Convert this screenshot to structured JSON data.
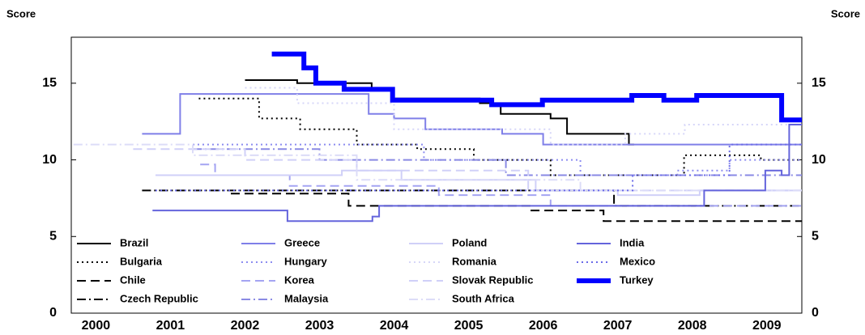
{
  "chart_data": {
    "type": "line",
    "y_label": "Score",
    "y2_label": "Score",
    "xlim": [
      2000.17,
      2009.97
    ],
    "xticks": [
      2000,
      2001,
      2002,
      2003,
      2004,
      2005,
      2006,
      2007,
      2008,
      2009
    ],
    "ylim": [
      0,
      18
    ],
    "yticks": [
      0,
      5,
      10,
      15
    ],
    "y2lim": [
      0,
      18
    ],
    "y2ticks": [
      0,
      5,
      10,
      15
    ],
    "grid": false,
    "legend": "lower left",
    "series": [
      {
        "name": "Brazil",
        "color": "#000000",
        "dash": "solid",
        "width": 2,
        "x": [
          2002.5,
          2003.2,
          2003.2,
          2004.2,
          2004.2,
          2004.48,
          2004.48,
          2005.65,
          2005.65,
          2005.93,
          2005.93,
          2006.6,
          2006.6,
          2006.82,
          2006.82,
          2007.65,
          2007.65,
          2007.72
        ],
        "values": [
          15.2,
          15.2,
          15,
          15,
          14.7,
          14.7,
          14,
          14,
          13.7,
          13.7,
          13,
          13,
          12.7,
          12.7,
          11.7,
          11.7,
          11,
          11
        ]
      },
      {
        "name": "Bulgaria",
        "color": "#000000",
        "dash": "dotted",
        "width": 2,
        "x": [
          2001.88,
          2002.69,
          2002.69,
          2003.24,
          2003.24,
          2004,
          2004,
          2004.81,
          2004.81,
          2005.57,
          2005.57,
          2006.6,
          2006.6,
          2008.39,
          2008.39,
          2009.42,
          2009.42,
          2009.97
        ],
        "values": [
          14,
          14,
          12.7,
          12.7,
          12,
          12,
          11,
          11,
          10.7,
          10.7,
          10,
          10,
          9,
          9,
          10.3,
          10.3,
          10,
          10
        ]
      },
      {
        "name": "Chile",
        "color": "#000000",
        "dash": "dashed",
        "width": 2,
        "x": [
          2002.31,
          2003.89,
          2003.89,
          2006.33,
          2006.33,
          2007.31,
          2007.31,
          2009.97
        ],
        "values": [
          7.8,
          7.8,
          7,
          7,
          6.7,
          6.7,
          6,
          6
        ]
      },
      {
        "name": "Czech Republic",
        "color": "#000000",
        "dash": "dashdot",
        "width": 2,
        "x": [
          2001.12,
          2007.45,
          2007.45,
          2009.97
        ],
        "values": [
          8,
          8,
          7,
          7
        ]
      },
      {
        "name": "Greece",
        "color": "#7f7fe8",
        "dash": "solid",
        "width": 2,
        "x": [
          2001.12,
          2001.63,
          2001.63,
          2004.16,
          2004.16,
          2004.5,
          2004.5,
          2004.92,
          2004.92,
          2005.95,
          2005.95,
          2006.5,
          2006.5,
          2009.97
        ],
        "values": [
          11.7,
          11.7,
          14.3,
          14.3,
          13,
          13,
          12.7,
          12.7,
          12,
          12,
          11.7,
          11.7,
          11,
          11
        ]
      },
      {
        "name": "Hungary",
        "color": "#8c8cf0",
        "dash": "dotted",
        "width": 2,
        "x": [
          2001.8,
          2004.9,
          2004.9,
          2007,
          2007,
          2008.3,
          2008.3,
          2009,
          2009,
          2009.97
        ],
        "values": [
          11,
          11,
          10,
          10,
          9,
          9,
          9.3,
          9.3,
          10,
          10
        ]
      },
      {
        "name": "Korea",
        "color": "#a4a4f2",
        "dash": "dashed",
        "width": 2,
        "x": [
          2001.9,
          2002.1,
          2002.1,
          2003.1,
          2003.1,
          2005.1,
          2005.1,
          2006.6,
          2006.6,
          2009.97
        ],
        "values": [
          9.7,
          9.7,
          9,
          9,
          8.3,
          8.3,
          7.7,
          7.7,
          7,
          7
        ]
      },
      {
        "name": "Malaysia",
        "color": "#8a8ae4",
        "dash": "dashdot",
        "width": 2,
        "x": [
          2001.8,
          2003.5,
          2003.5,
          2006,
          2006,
          2009.97
        ],
        "values": [
          10.7,
          10.7,
          10,
          10,
          9,
          9
        ]
      },
      {
        "name": "Poland",
        "color": "#d0d0f8",
        "dash": "solid",
        "width": 2,
        "x": [
          2001.3,
          2003.8,
          2003.8,
          2004.6,
          2004.6,
          2006.4,
          2006.4,
          2007.5,
          2007.5,
          2008.6,
          2008.6,
          2009.97
        ],
        "values": [
          9,
          9,
          9.3,
          9.3,
          8.7,
          8.7,
          8,
          8,
          7.7,
          7.7,
          8,
          8
        ]
      },
      {
        "name": "Romania",
        "color": "#d6d6f8",
        "dash": "dotted",
        "width": 2,
        "x": [
          2002.5,
          2003.2,
          2003.2,
          2004.5,
          2004.5,
          2006.6,
          2006.6,
          2007.6,
          2007.6,
          2008.4,
          2008.4,
          2009.97
        ],
        "values": [
          14.7,
          14.7,
          13.7,
          13.7,
          12,
          12,
          11,
          11,
          11.7,
          11.7,
          12.3,
          12.3
        ]
      },
      {
        "name": "Slovak Republic",
        "color": "#d0d0f8",
        "dash": "dashed",
        "width": 2,
        "x": [
          2001,
          2002.5,
          2002.5,
          2004,
          2004,
          2006.3,
          2006.3,
          2009.97
        ],
        "values": [
          10.7,
          10.7,
          10,
          10,
          9.3,
          9.3,
          8,
          8
        ]
      },
      {
        "name": "South Africa",
        "color": "#dcdcf8",
        "dash": "dashdot",
        "width": 2,
        "x": [
          2000.2,
          2001.8,
          2001.8,
          2004,
          2004,
          2007,
          2007,
          2009.97
        ],
        "values": [
          11,
          11,
          10.3,
          10.3,
          8.7,
          8.7,
          8,
          8
        ]
      },
      {
        "name": "India",
        "color": "#6464dc",
        "dash": "solid",
        "width": 2,
        "x": [
          2001.26,
          2003.07,
          2003.07,
          2004.21,
          2004.21,
          2004.3,
          2004.3,
          2008.66,
          2008.66,
          2009.48,
          2009.48,
          2009.7,
          2009.7,
          2009.8,
          2009.8,
          2009.97
        ],
        "values": [
          6.7,
          6.7,
          6,
          6,
          6.3,
          6.3,
          7,
          7,
          8,
          8,
          9.3,
          9.3,
          9,
          9,
          12.3,
          12.3
        ]
      },
      {
        "name": "Mexico",
        "color": "#6a6ae8",
        "dash": "dotted",
        "width": 2,
        "x": [
          2001.3,
          2007.7,
          2007.7,
          2009,
          2009,
          2009.97
        ],
        "values": [
          8,
          8,
          9,
          9,
          11,
          11
        ]
      },
      {
        "name": "Turkey",
        "color": "#0000ff",
        "dash": "solid",
        "width": 6,
        "x": [
          2002.86,
          2003.29,
          2003.29,
          2003.45,
          2003.45,
          2003.83,
          2003.83,
          2004.48,
          2004.48,
          2005.81,
          2005.81,
          2006.49,
          2006.49,
          2007.69,
          2007.69,
          2008.12,
          2008.12,
          2008.56,
          2008.56,
          2009.7,
          2009.7,
          2009.97
        ],
        "values": [
          16.9,
          16.9,
          16,
          16,
          15,
          15,
          14.6,
          14.6,
          13.9,
          13.9,
          13.6,
          13.6,
          13.9,
          13.9,
          14.2,
          14.2,
          13.9,
          13.9,
          14.2,
          14.2,
          12.6,
          12.6
        ]
      }
    ]
  }
}
